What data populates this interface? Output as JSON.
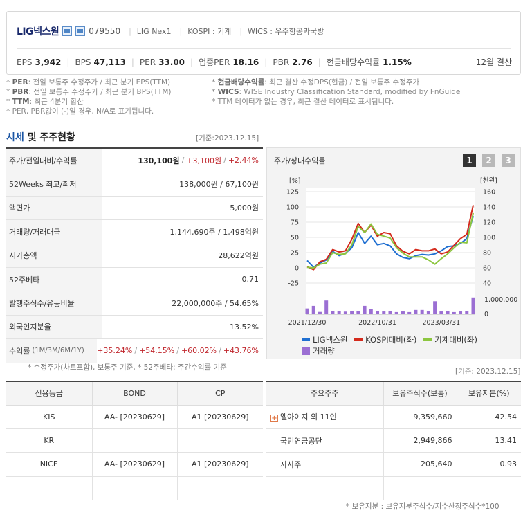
{
  "header": {
    "company": "LIG넥스원",
    "code": "079550",
    "eng_name": "LIG Nex1",
    "market": "KOSPI : 기계",
    "wics": "WICS : 우주항공과국방",
    "stats": [
      {
        "label": "EPS",
        "value": "3,942"
      },
      {
        "label": "BPS",
        "value": "47,113"
      },
      {
        "label": "PER",
        "value": "33.00"
      },
      {
        "label": "업종PER",
        "value": "18.16"
      },
      {
        "label": "PBR",
        "value": "2.76"
      },
      {
        "label": "현금배당수익률",
        "value": "1.15%"
      }
    ],
    "settlement": "12월 결산"
  },
  "notes": {
    "left": [
      {
        "key": "PER",
        "text": ": 전일 보통주 수정주가 / 최근 분기 EPS(TTM)"
      },
      {
        "key": "PBR",
        "text": ": 전일 보통주 수정주가 / 최근 분기 BPS(TTM)"
      },
      {
        "key": "TTM",
        "text": ": 최근 4분기 합산"
      },
      {
        "key": "",
        "text": "PER, PBR값이 (-)일 경우, N/A로 표기됩니다."
      }
    ],
    "right": [
      {
        "key": "현금배당수익률",
        "text": ": 최근 결산 수정DPS(현금) / 전일 보통주 수정주가"
      },
      {
        "key": "WICS",
        "text": ": WISE Industry Classification Standard, modified by FnGuide"
      },
      {
        "key": "",
        "text": "TTM 데이터가 없는 경우, 최근 결산 데이터로 표시됩니다."
      }
    ]
  },
  "section": {
    "hl": "시세",
    "rest": " 및 주주현황",
    "base_date": "[기준:2023.12.15]"
  },
  "quote": {
    "rows": [
      {
        "label": "주가/전일대비/수익률",
        "price": "130,100원",
        "change": "+3,100원",
        "rate": "+2.44%"
      },
      {
        "label": "52Weeks 최고/최저",
        "value": "138,000원 / 67,100원"
      },
      {
        "label": "액면가",
        "value": "5,000원"
      },
      {
        "label": "거래량/거래대금",
        "value": "1,144,690주 / 1,498억원"
      },
      {
        "label": "시가총액",
        "value": "28,622억원"
      },
      {
        "label": "52주베타",
        "value": "0.71"
      },
      {
        "label": "발행주식수/유동비율",
        "value": "22,000,000주 / 54.65%"
      },
      {
        "label": "외국인지분율",
        "value": "13.52%"
      }
    ],
    "returns": {
      "label": "수익률",
      "sub": "(1M/3M/6M/1Y)",
      "values": [
        "+35.24%",
        "+54.15%",
        "+60.02%",
        "+43.76%"
      ]
    },
    "note": "* 수정주가(차트포함), 보통주 기준, * 52주베타: 주간수익률 기준"
  },
  "chart_panel": {
    "title": "주가/상대수익률",
    "tabs": [
      "1",
      "2",
      "3"
    ],
    "active_tab": 0
  },
  "chart_data": {
    "type": "line",
    "left_unit": "[%]",
    "right_unit": "[천원]",
    "left_ticks": [
      "125",
      "100",
      "75",
      "50",
      "25",
      "0",
      "-25"
    ],
    "right_ticks": [
      "160",
      "140",
      "120",
      "100",
      "80",
      "60",
      "40"
    ],
    "volume_ticks": [
      "1,000,000",
      "0"
    ],
    "x_ticks": [
      "2021/12/30",
      "2022/10/31",
      "2023/03/31"
    ],
    "ylim_left": [
      -25,
      125
    ],
    "ylim_right": [
      40,
      160
    ],
    "series": [
      {
        "name": "LIG넥스원",
        "color": "#1f6fd1",
        "axis": "left",
        "values": [
          12,
          1,
          8,
          13,
          27,
          20,
          24,
          33,
          58,
          40,
          52,
          38,
          40,
          36,
          23,
          17,
          15,
          20,
          22,
          21,
          23,
          28,
          35,
          36,
          40,
          48,
          85
        ]
      },
      {
        "name": "KOSPI대비(좌)",
        "color": "#d42a1c",
        "axis": "left",
        "values": [
          2,
          -3,
          10,
          14,
          30,
          26,
          28,
          47,
          73,
          58,
          70,
          52,
          58,
          56,
          36,
          27,
          23,
          30,
          28,
          28,
          31,
          23,
          26,
          37,
          48,
          55,
          103
        ]
      },
      {
        "name": "기계대비(좌)",
        "color": "#8cc63f",
        "axis": "left",
        "values": [
          1,
          0,
          6,
          8,
          25,
          22,
          23,
          38,
          68,
          58,
          72,
          55,
          52,
          49,
          33,
          24,
          18,
          18,
          18,
          13,
          6,
          15,
          23,
          33,
          42,
          41,
          90
        ]
      }
    ],
    "volume": {
      "name": "거래량",
      "color": "#9b6fd3",
      "values": [
        0.38,
        0.55,
        0.15,
        0.9,
        0.22,
        0.2,
        0.17,
        0.2,
        0.22,
        0.55,
        0.32,
        0.2,
        0.18,
        0.22,
        0.14,
        0.18,
        0.14,
        0.28,
        0.28,
        0.2,
        0.85,
        0.18,
        0.2,
        0.14,
        0.18,
        0.2,
        1.1
      ]
    },
    "legend": [
      "LIG넥스원",
      "KOSPI대비(좌)",
      "기계대비(좌)",
      "거래량"
    ]
  },
  "credit": {
    "base_date": "[기준: 2023.12.15]",
    "headers": [
      "신용등급",
      "BOND",
      "CP"
    ],
    "rows": [
      [
        "KIS",
        "AA-  [20230629]",
        "A1  [20230629]"
      ],
      [
        "KR",
        "",
        ""
      ],
      [
        "NICE",
        "AA-  [20230629]",
        "A1  [20230629]"
      ],
      [
        "",
        "",
        ""
      ]
    ]
  },
  "holders": {
    "headers": [
      "주요주주",
      "보유주식수(보통)",
      "보유지분(%)"
    ],
    "rows": [
      [
        "엘아이지 외 11인",
        "9,359,660",
        "42.54"
      ],
      [
        "국민연금공단",
        "2,949,866",
        "13.41"
      ],
      [
        "자사주",
        "205,640",
        "0.93"
      ],
      [
        "",
        "",
        ""
      ]
    ],
    "note": "* 보유지분 : 보유지분주식수/지수산정주식수*100"
  },
  "colors": {
    "accent": "#1a55a4",
    "red": "#c0272d",
    "header_name": "#1a2a6c"
  }
}
